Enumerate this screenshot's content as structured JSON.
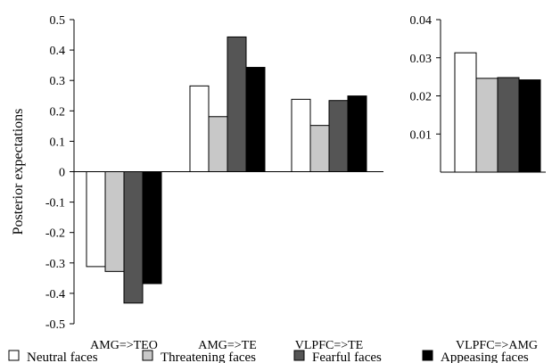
{
  "chart_data": [
    {
      "type": "bar",
      "ylabel": "Posterior expectations",
      "ylim": [
        -0.5,
        0.5
      ],
      "yticks": [
        "0.5",
        "0.4",
        "0.3",
        "0.2",
        "0.1",
        "0",
        "-0.1",
        "-0.2",
        "-0.3",
        "-0.4",
        "-0.5"
      ],
      "categories": [
        "AMG=>TEO",
        "AMG=>TE",
        "VLPFC=>TE"
      ],
      "series": [
        {
          "name": "Neutral faces",
          "color": "#ffffff",
          "values": [
            -0.312,
            0.282,
            0.238
          ]
        },
        {
          "name": "Threatening faces",
          "color": "#c8c8c8",
          "values": [
            -0.328,
            0.181,
            0.152
          ]
        },
        {
          "name": "Fearful faces",
          "color": "#555555",
          "values": [
            -0.432,
            0.443,
            0.234
          ]
        },
        {
          "name": "Appeasing faces",
          "color": "#000000",
          "values": [
            -0.368,
            0.343,
            0.249
          ]
        }
      ]
    },
    {
      "type": "bar",
      "ylim": [
        0,
        0.04
      ],
      "yticks": [
        "0.04",
        "0.03",
        "0.02",
        "0.01"
      ],
      "categories": [
        "VLPFC=>AMG"
      ],
      "series": [
        {
          "name": "Neutral faces",
          "color": "#ffffff",
          "values": [
            0.0313
          ]
        },
        {
          "name": "Threatening faces",
          "color": "#c8c8c8",
          "values": [
            0.0246
          ]
        },
        {
          "name": "Fearful faces",
          "color": "#555555",
          "values": [
            0.0248
          ]
        },
        {
          "name": "Appeasing faces",
          "color": "#000000",
          "values": [
            0.0242
          ]
        }
      ]
    }
  ],
  "legend": {
    "placement": "bottom",
    "items": [
      {
        "label": "Neutral faces",
        "color": "#ffffff"
      },
      {
        "label": "Threatening faces",
        "color": "#c8c8c8"
      },
      {
        "label": "Fearful faces",
        "color": "#555555"
      },
      {
        "label": "Appeasing faces",
        "color": "#000000"
      }
    ]
  }
}
